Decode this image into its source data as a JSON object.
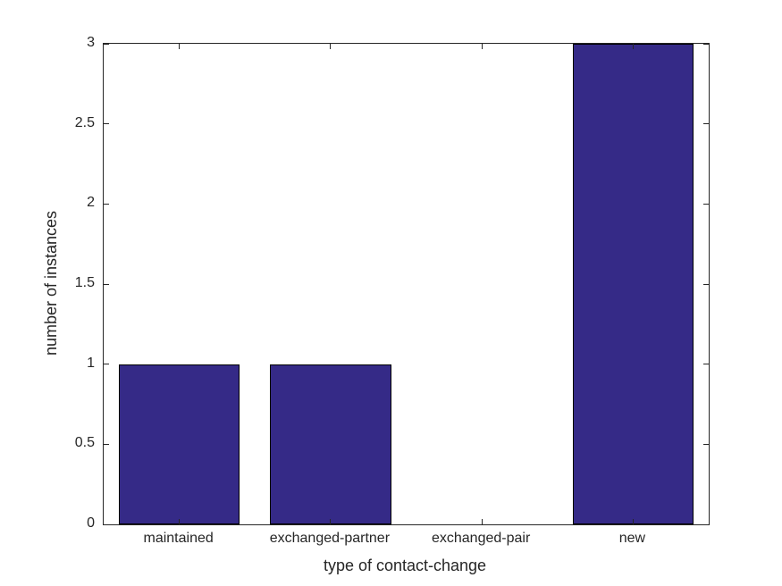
{
  "figure": {
    "background": "#ffffff"
  },
  "chart_data": {
    "type": "bar",
    "title": "",
    "categories": [
      "maintained",
      "exchanged-partner",
      "exchanged-pair",
      "new"
    ],
    "values": [
      1,
      1,
      0,
      3
    ],
    "xlabel": "type of contact-change",
    "ylabel": "number of instances",
    "ylim": [
      0,
      3
    ],
    "yticks": [
      0,
      0.5,
      1,
      1.5,
      2,
      2.5,
      3
    ],
    "ytick_labels": [
      "0",
      "0.5",
      "1",
      "1.5",
      "2",
      "2.5",
      "3"
    ],
    "bar_relative_width": 0.8,
    "grid": false,
    "legend": null,
    "colors": {
      "bar_fill": "#352A87",
      "bar_edge": "#000000",
      "axis": "#262626",
      "text": "#262626",
      "plot_background": "#ffffff"
    }
  }
}
